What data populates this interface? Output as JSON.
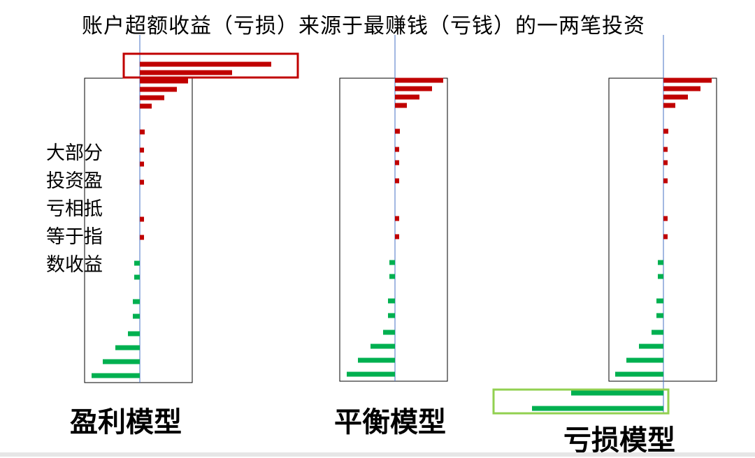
{
  "title": "账户超额收益（亏损）来源于最赚钱（亏钱）的一两笔投资",
  "side_note": "大部分\n投资盈\n亏相抵\n等于指\n数收益",
  "colors": {
    "positive": "#c00000",
    "negative": "#00b050",
    "highlight_red": "#c00000",
    "highlight_green": "#92d050",
    "axis_line": "#4472c4",
    "frame": "#000000"
  },
  "chart_data": [
    {
      "type": "bar",
      "orientation": "horizontal",
      "label": "盈利模型",
      "values": [
        188,
        132,
        69,
        53,
        35,
        17,
        7,
        6,
        6,
        6,
        6,
        6,
        -8,
        -8,
        -10,
        -10,
        -17,
        -35,
        -53,
        -69
      ],
      "highlight": "top"
    },
    {
      "type": "bar",
      "orientation": "horizontal",
      "label": "平衡模型",
      "values": [
        69,
        53,
        35,
        17,
        7,
        6,
        6,
        6,
        6,
        6,
        -8,
        -8,
        -10,
        -10,
        -17,
        -35,
        -53,
        -69
      ],
      "highlight": "none"
    },
    {
      "type": "bar",
      "orientation": "horizontal",
      "label": "亏损模型",
      "values": [
        69,
        53,
        35,
        17,
        7,
        6,
        6,
        6,
        6,
        6,
        -8,
        -8,
        -10,
        -10,
        -17,
        -35,
        -53,
        -69,
        -132,
        -188
      ],
      "highlight": "bottom"
    }
  ]
}
